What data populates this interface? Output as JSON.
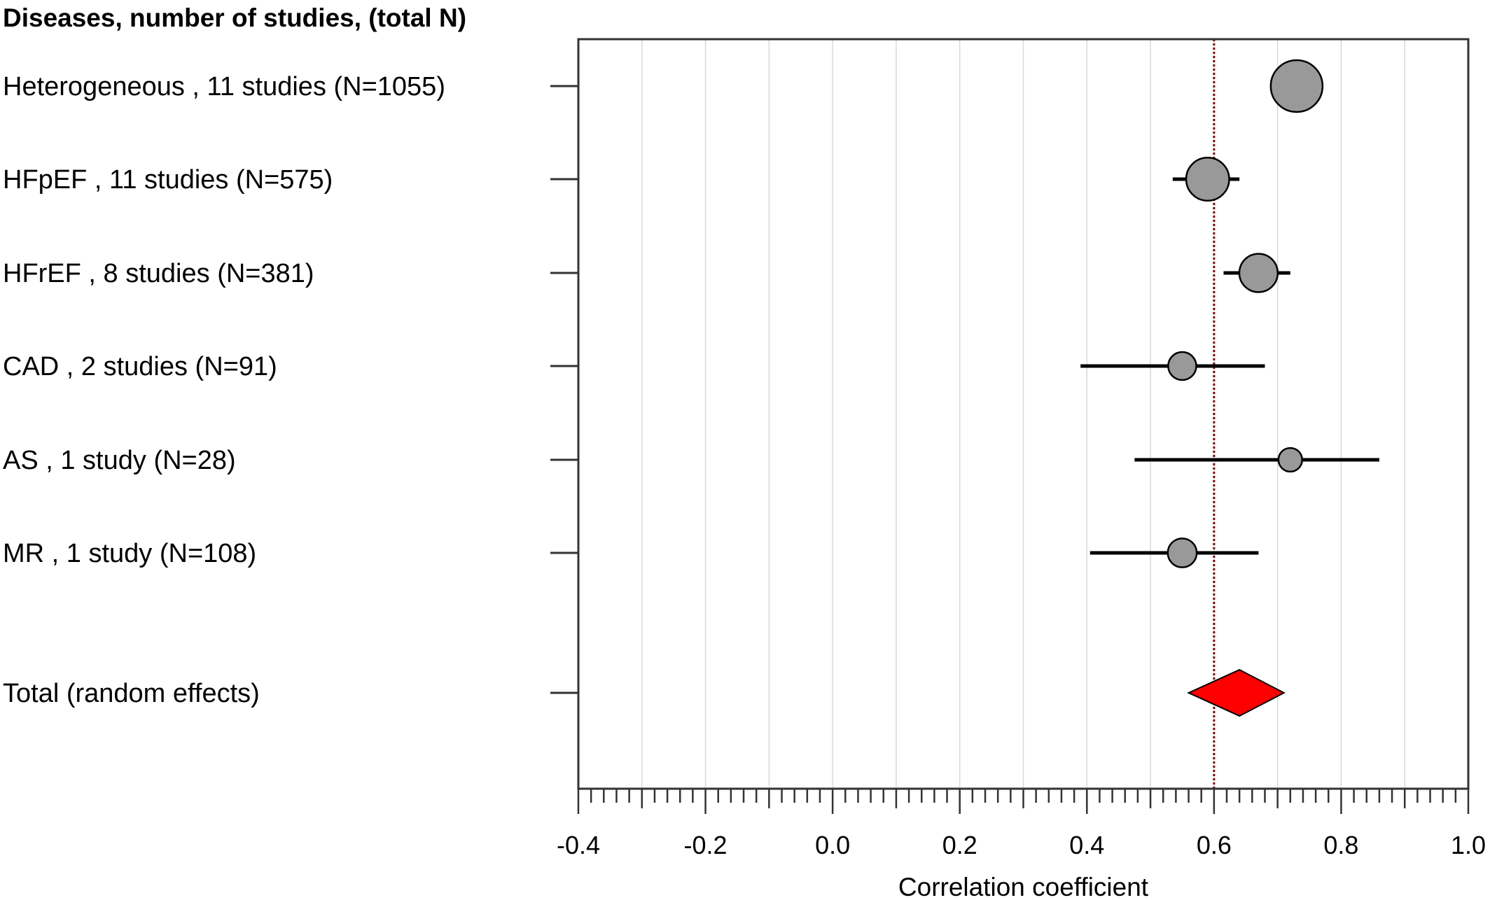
{
  "chart_data": {
    "type": "forest",
    "header": "Diseases, number of studies, (total N)",
    "xlabel": "Correlation coefficient",
    "xlim": [
      -0.4,
      1.0
    ],
    "x_ticks": [
      "-0.4",
      "-0.2",
      "0.0",
      "0.2",
      "0.4",
      "0.6",
      "0.8",
      "1.0"
    ],
    "reference_line": 0.6,
    "grid": true,
    "rows": [
      {
        "label": "Heterogeneous , 11 studies (N=1055)",
        "estimate": 0.73,
        "ci_low": 0.73,
        "ci_high": 0.73,
        "n": 1055
      },
      {
        "label": "HFpEF , 11 studies (N=575)",
        "estimate": 0.59,
        "ci_low": 0.535,
        "ci_high": 0.64,
        "n": 575
      },
      {
        "label": "HFrEF , 8 studies (N=381)",
        "estimate": 0.67,
        "ci_low": 0.615,
        "ci_high": 0.72,
        "n": 381
      },
      {
        "label": "CAD , 2 studies (N=91)",
        "estimate": 0.55,
        "ci_low": 0.39,
        "ci_high": 0.68,
        "n": 91
      },
      {
        "label": "AS , 1 study (N=28)",
        "estimate": 0.72,
        "ci_low": 0.475,
        "ci_high": 0.86,
        "n": 28
      },
      {
        "label": "MR , 1 study (N=108)",
        "estimate": 0.55,
        "ci_low": 0.405,
        "ci_high": 0.67,
        "n": 108
      }
    ],
    "total": {
      "label": "Total (random effects)",
      "estimate": 0.64,
      "ci_low": 0.56,
      "ci_high": 0.71
    },
    "colors": {
      "marker": "#999999",
      "diamond": "#ff0000",
      "reference_line": "#8b0000",
      "grid": "#d9d9d9"
    }
  }
}
